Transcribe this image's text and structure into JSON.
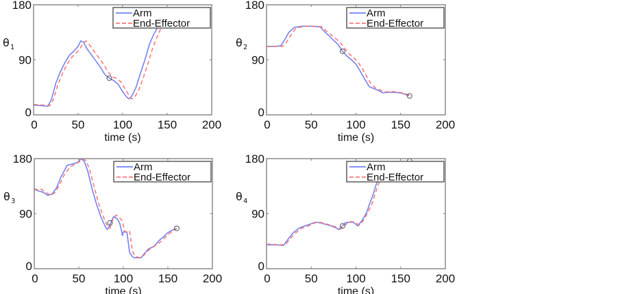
{
  "chart_data": [
    {
      "type": "line",
      "panel": "top-left",
      "title": "",
      "xlabel": "time (s)",
      "ylabel": "θ",
      "ylabel_subscript": "1",
      "xlim": [
        0,
        200
      ],
      "ylim": [
        0,
        180
      ],
      "xticks": [
        0,
        50,
        100,
        150,
        200
      ],
      "yticks": [
        0,
        90,
        180
      ],
      "xtick_labels": [
        "0",
        "50",
        "100",
        "150",
        "200"
      ],
      "ytick_labels": [
        "0",
        "90",
        "180"
      ],
      "grid": false,
      "legend": {
        "position": "top-right",
        "entries": [
          "Arm",
          "End-Effector"
        ]
      },
      "series": [
        {
          "name": "Arm",
          "color": "#5b6cf0",
          "style": "solid",
          "x": [
            0,
            10,
            16,
            20,
            25,
            30,
            35,
            40,
            45,
            50,
            53,
            56,
            60,
            65,
            70,
            75,
            80,
            85,
            90,
            95,
            100,
            104,
            107,
            110,
            115,
            120,
            125,
            130,
            135,
            140
          ],
          "y": [
            16,
            15,
            14,
            25,
            52,
            70,
            85,
            97,
            104,
            112,
            121,
            119,
            108,
            98,
            88,
            78,
            66,
            60,
            56,
            50,
            38,
            30,
            26,
            30,
            45,
            68,
            90,
            115,
            132,
            145
          ]
        },
        {
          "name": "End-Effector",
          "color": "#ff6060",
          "style": "dashed",
          "x": [
            0,
            10,
            18,
            22,
            27,
            32,
            37,
            42,
            47,
            52,
            56,
            59,
            63,
            68,
            73,
            78,
            83,
            88,
            93,
            98,
            103,
            107,
            110,
            113,
            118,
            123,
            128,
            133,
            138,
            143
          ],
          "y": [
            17,
            16,
            15,
            24,
            48,
            66,
            81,
            93,
            100,
            108,
            118,
            121,
            114,
            104,
            94,
            84,
            72,
            62,
            60,
            54,
            42,
            32,
            26,
            28,
            40,
            60,
            82,
            106,
            125,
            142
          ]
        }
      ],
      "markers": [
        {
          "x": 85,
          "y": 60
        }
      ]
    },
    {
      "type": "line",
      "panel": "top-right",
      "title": "",
      "xlabel": "time (s)",
      "ylabel": "θ",
      "ylabel_subscript": "2",
      "xlim": [
        0,
        200
      ],
      "ylim": [
        0,
        180
      ],
      "xticks": [
        0,
        50,
        100,
        150,
        200
      ],
      "yticks": [
        0,
        90,
        180
      ],
      "xtick_labels": [
        "0",
        "50",
        "100",
        "150",
        "200"
      ],
      "ytick_labels": [
        "0",
        "90",
        "180"
      ],
      "grid": false,
      "legend": {
        "position": "top-right",
        "entries": [
          "Arm",
          "End-Effector"
        ]
      },
      "series": [
        {
          "name": "Arm",
          "color": "#5b6cf0",
          "style": "solid",
          "x": [
            0,
            10,
            16,
            20,
            25,
            31,
            40,
            50,
            60,
            65,
            70,
            75,
            80,
            85,
            90,
            95,
            100,
            105,
            110,
            115,
            120,
            125,
            130,
            135,
            140,
            150,
            160
          ],
          "y": [
            112,
            112,
            113,
            122,
            135,
            143,
            145,
            145,
            144,
            136,
            129,
            122,
            115,
            104,
            96,
            90,
            83,
            71,
            58,
            46,
            43,
            40,
            36,
            37,
            37,
            36,
            31
          ]
        },
        {
          "name": "End-Effector",
          "color": "#ff6060",
          "style": "dashed",
          "x": [
            0,
            10,
            18,
            22,
            27,
            33,
            42,
            52,
            62,
            67,
            72,
            77,
            82,
            87,
            92,
            97,
            102,
            107,
            112,
            117,
            122,
            127,
            132,
            137,
            142,
            152,
            160
          ],
          "y": [
            112,
            112,
            112,
            118,
            130,
            142,
            145,
            145,
            144,
            137,
            131,
            125,
            119,
            110,
            100,
            94,
            87,
            76,
            63,
            50,
            44,
            41,
            37,
            38,
            38,
            36,
            32
          ]
        }
      ],
      "markers": [
        {
          "x": 85,
          "y": 104
        },
        {
          "x": 160,
          "y": 31
        }
      ]
    },
    {
      "type": "line",
      "panel": "bottom-left",
      "title": "",
      "xlabel": "time (s)",
      "ylabel": "θ",
      "ylabel_subscript": "3",
      "xlim": [
        0,
        200
      ],
      "ylim": [
        0,
        180
      ],
      "xticks": [
        0,
        50,
        100,
        150,
        200
      ],
      "yticks": [
        0,
        90,
        180
      ],
      "xtick_labels": [
        "0",
        "50",
        "100",
        "150",
        "200"
      ],
      "ytick_labels": [
        "0",
        "90",
        "180"
      ],
      "grid": false,
      "legend": {
        "position": "top-right",
        "entries": [
          "Arm",
          "End-Effector"
        ]
      },
      "series": [
        {
          "name": "Arm",
          "color": "#5b6cf0",
          "style": "solid",
          "x": [
            0,
            5,
            10,
            15,
            20,
            25,
            30,
            37,
            45,
            50,
            52,
            56,
            60,
            65,
            70,
            75,
            80,
            82,
            85,
            89,
            93,
            96,
            98,
            99,
            100,
            104,
            107,
            110,
            112,
            120,
            125,
            128,
            135,
            140,
            145,
            150,
            155,
            160
          ],
          "y": [
            130,
            127,
            125,
            120,
            122,
            132,
            150,
            169,
            172,
            175,
            180,
            176,
            160,
            130,
            105,
            84,
            68,
            64,
            72,
            85,
            82,
            74,
            62,
            54,
            60,
            60,
            27,
            20,
            18,
            18,
            27,
            32,
            37,
            46,
            52,
            59,
            63,
            66
          ]
        },
        {
          "name": "End-Effector",
          "color": "#ff6060",
          "style": "dashed",
          "x": [
            0,
            5,
            8,
            12,
            18,
            23,
            28,
            33,
            40,
            47,
            52,
            55,
            58,
            62,
            67,
            72,
            77,
            82,
            85,
            88,
            92,
            96,
            99,
            101,
            103,
            105,
            107,
            110,
            113,
            118,
            123,
            128,
            133,
            140,
            145,
            150,
            155,
            160
          ],
          "y": [
            131,
            128,
            130,
            126,
            120,
            124,
            136,
            152,
            166,
            172,
            176,
            179,
            177,
            163,
            135,
            108,
            87,
            70,
            66,
            80,
            88,
            83,
            78,
            62,
            60,
            60,
            62,
            30,
            20,
            18,
            22,
            30,
            35,
            42,
            48,
            56,
            61,
            66
          ]
        }
      ],
      "markers": [
        {
          "x": 85,
          "y": 75
        },
        {
          "x": 160,
          "y": 66
        }
      ]
    },
    {
      "type": "line",
      "panel": "bottom-right",
      "title": "",
      "xlabel": "time (s)",
      "ylabel": "θ",
      "ylabel_subscript": "4",
      "xlim": [
        0,
        200
      ],
      "ylim": [
        0,
        180
      ],
      "xticks": [
        0,
        50,
        100,
        150,
        200
      ],
      "yticks": [
        0,
        90,
        180
      ],
      "xtick_labels": [
        "0",
        "50",
        "100",
        "150",
        "200"
      ],
      "ytick_labels": [
        "0",
        "90",
        "180"
      ],
      "grid": false,
      "legend": {
        "position": "top-right",
        "entries": [
          "Arm",
          "End-Effector"
        ]
      },
      "series": [
        {
          "name": "Arm",
          "color": "#5b6cf0",
          "style": "solid",
          "x": [
            0,
            10,
            19,
            25,
            30,
            37,
            45,
            55,
            60,
            70,
            76,
            81,
            85,
            88,
            92,
            97,
            102,
            107,
            112,
            115,
            119,
            122,
            126
          ],
          "y": [
            39,
            39,
            38,
            50,
            59,
            67,
            71,
            76,
            75,
            71,
            68,
            64,
            70,
            75,
            76,
            76,
            70,
            79,
            92,
            105,
            120,
            135,
            150
          ]
        },
        {
          "name": "End-Effector",
          "color": "#ff6060",
          "style": "dashed",
          "x": [
            0,
            5,
            10,
            21,
            27,
            32,
            39,
            47,
            57,
            62,
            72,
            78,
            83,
            87,
            90,
            94,
            99,
            104,
            109,
            114,
            118,
            121,
            124,
            128
          ],
          "y": [
            39,
            41,
            39,
            39,
            50,
            58,
            66,
            70,
            77,
            75,
            71,
            68,
            65,
            70,
            74,
            77,
            76,
            71,
            80,
            94,
            106,
            120,
            134,
            148
          ]
        }
      ],
      "markers": [
        {
          "x": 85,
          "y": 70
        },
        {
          "x": 160,
          "y": 176
        }
      ]
    }
  ]
}
